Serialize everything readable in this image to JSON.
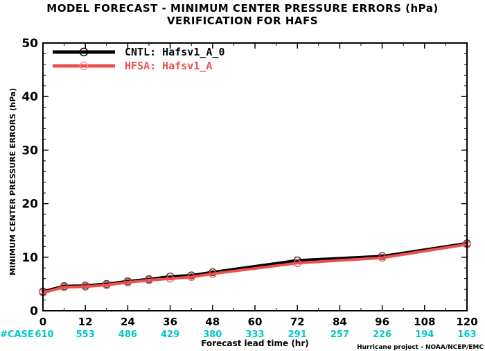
{
  "chart_data": {
    "type": "line",
    "title": [
      "MODEL FORECAST - MINIMUM CENTER PRESSURE ERRORS (hPa)",
      "VERIFICATION FOR HAFS"
    ],
    "xlabel": "Forecast lead time (hr)",
    "ylabel": "MINIMUM CENTER PRESSURE ERRORS (hPa)",
    "xlim": [
      0,
      120
    ],
    "ylim": [
      0,
      50
    ],
    "xticks": [
      0,
      12,
      24,
      36,
      48,
      60,
      72,
      84,
      96,
      108,
      120
    ],
    "yticks": [
      0,
      10,
      20,
      30,
      40,
      50
    ],
    "grid": false,
    "legend_position": "top-left",
    "series": [
      {
        "name": "CNTL: Hafsv1_A_0",
        "color": "#000000",
        "x": [
          0,
          6,
          12,
          18,
          24,
          30,
          36,
          42,
          48,
          72,
          96,
          120
        ],
        "y": [
          3.6,
          4.6,
          4.7,
          5.0,
          5.5,
          5.9,
          6.4,
          6.6,
          7.2,
          9.4,
          10.2,
          12.6
        ]
      },
      {
        "name": "HFSA: Hafsv1_A",
        "color": "#ee5050",
        "x": [
          0,
          6,
          12,
          18,
          24,
          30,
          36,
          42,
          48,
          72,
          96,
          120
        ],
        "y": [
          3.4,
          4.4,
          4.5,
          4.8,
          5.3,
          5.7,
          6.0,
          6.3,
          6.9,
          8.9,
          9.9,
          12.4
        ]
      }
    ],
    "case_label": "#CASE",
    "case_counts": [
      {
        "x": 0,
        "value": "610"
      },
      {
        "x": 12,
        "value": "553"
      },
      {
        "x": 24,
        "value": "486"
      },
      {
        "x": 36,
        "value": "429"
      },
      {
        "x": 48,
        "value": "380"
      },
      {
        "x": 60,
        "value": "333"
      },
      {
        "x": 72,
        "value": "291"
      },
      {
        "x": 84,
        "value": "257"
      },
      {
        "x": 96,
        "value": "226"
      },
      {
        "x": 108,
        "value": "194"
      },
      {
        "x": 120,
        "value": "163"
      }
    ],
    "case_color": "#00c8c8",
    "credit": "Hurricane project - NOAA/NCEP/EMC"
  }
}
